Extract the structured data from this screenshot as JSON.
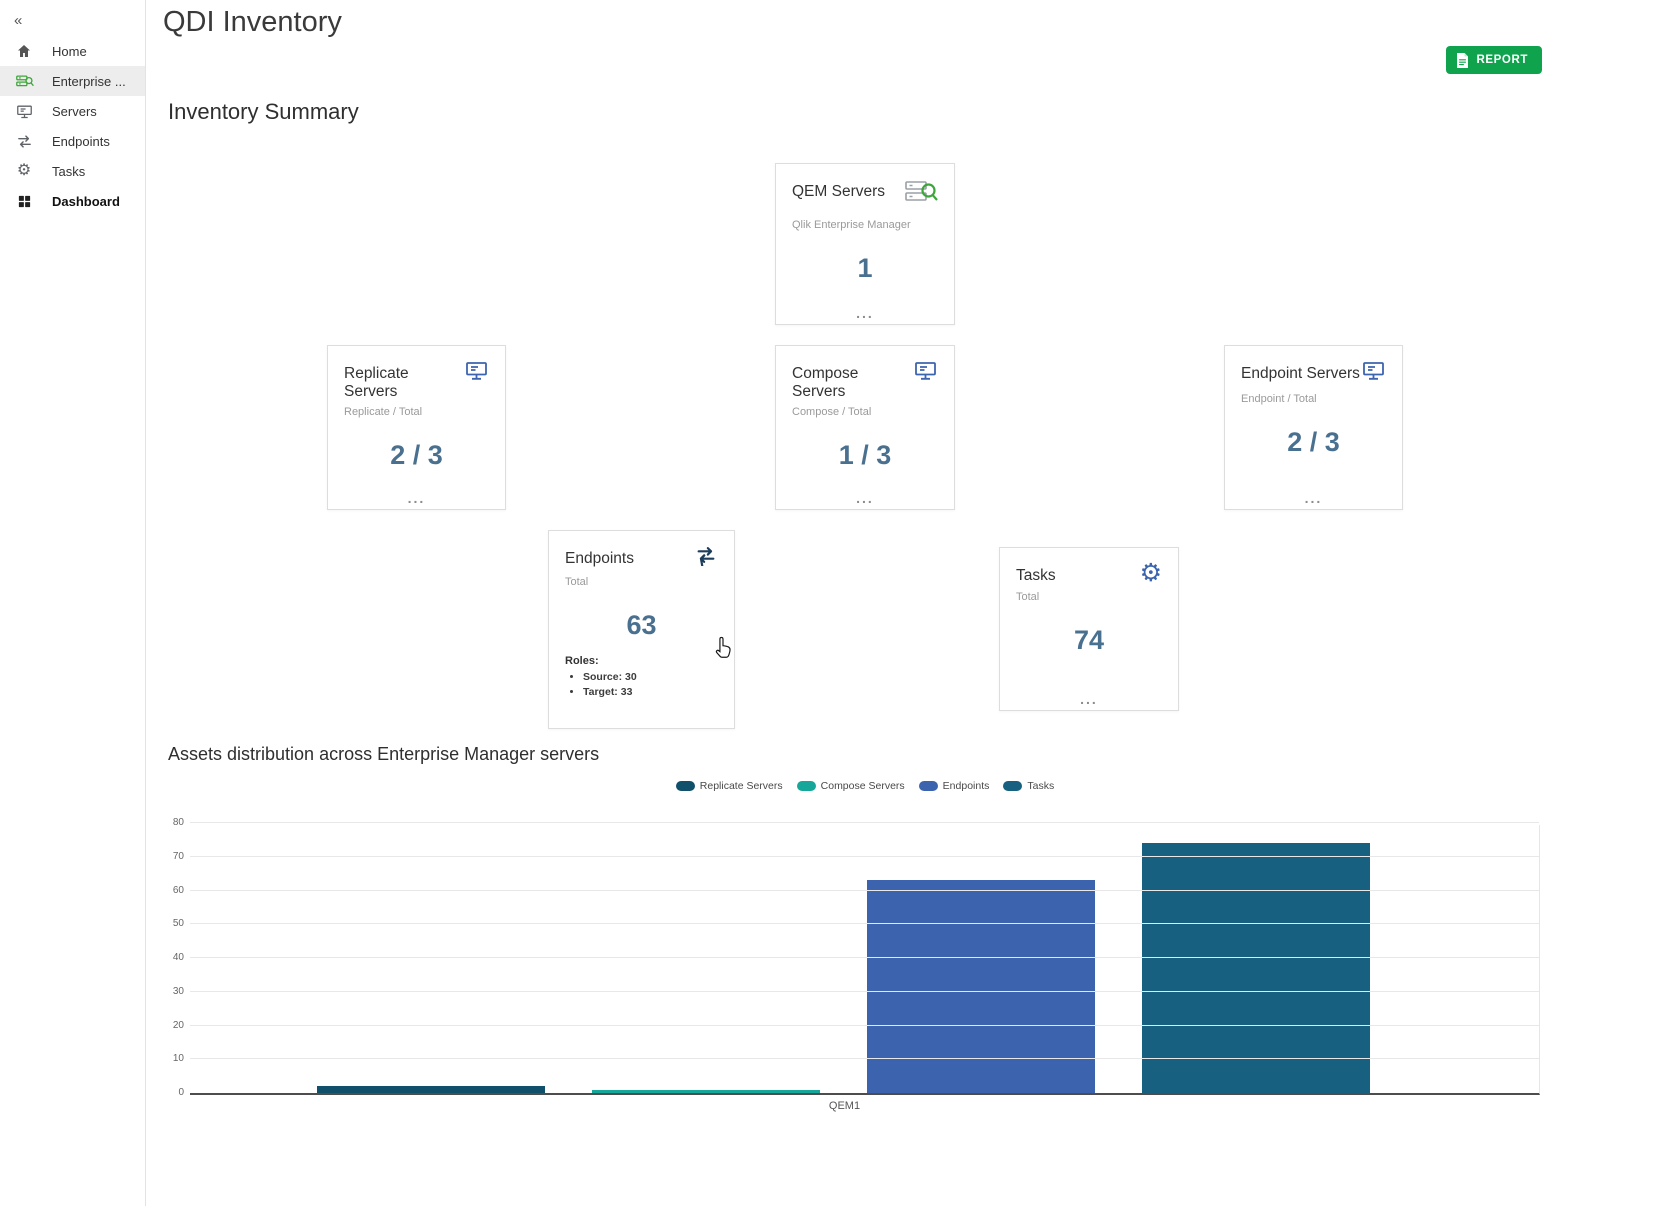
{
  "sidebar": {
    "collapse": "«",
    "items": [
      {
        "label": "Home",
        "icon": "home-icon"
      },
      {
        "label": "Enterprise ...",
        "icon": "enterprise-manager-icon"
      },
      {
        "label": "Servers",
        "icon": "servers-icon"
      },
      {
        "label": "Endpoints",
        "icon": "endpoints-icon"
      },
      {
        "label": "Tasks",
        "icon": "tasks-gear-icon"
      },
      {
        "label": "Dashboard",
        "icon": "dashboard-grid-icon"
      }
    ]
  },
  "header": {
    "title": "QDI Inventory",
    "report_button": "REPORT",
    "report_color": "#0fa34e"
  },
  "summary": {
    "heading": "Inventory Summary",
    "value_color": "#4a7090",
    "cards": {
      "qem": {
        "title": "QEM Servers",
        "subtitle": "Qlik Enterprise Manager",
        "value": "1",
        "more": "...",
        "icon": "qem-server-search-icon"
      },
      "replicate": {
        "title": "Replicate Servers",
        "subtitle": "Replicate / Total",
        "value": "2 / 3",
        "more": "...",
        "icon": "monitor-icon"
      },
      "compose": {
        "title": "Compose Servers",
        "subtitle": "Compose / Total",
        "value": "1 / 3",
        "more": "...",
        "icon": "monitor-icon"
      },
      "endpoint_servers": {
        "title": "Endpoint Servers",
        "subtitle": "Endpoint / Total",
        "value": "2 / 3",
        "more": "...",
        "icon": "monitor-icon"
      },
      "endpoints": {
        "title": "Endpoints",
        "subtitle": "Total",
        "value": "63",
        "roles_label": "Roles:",
        "roles": [
          "Source: 30",
          "Target: 33"
        ],
        "icon": "swap-arrows-icon"
      },
      "tasks": {
        "title": "Tasks",
        "subtitle": "Total",
        "value": "74",
        "more": "...",
        "icon": "gear-icon"
      }
    }
  },
  "chart_data": {
    "type": "bar",
    "title": "Assets distribution across Enterprise Manager servers",
    "categories": [
      "QEM1"
    ],
    "series": [
      {
        "name": "Replicate Servers",
        "values": [
          2
        ],
        "color": "#11506b"
      },
      {
        "name": "Compose Servers",
        "values": [
          1
        ],
        "color": "#17a79a"
      },
      {
        "name": "Endpoints",
        "values": [
          63
        ],
        "color": "#3c64ae"
      },
      {
        "name": "Tasks",
        "values": [
          74
        ],
        "color": "#176080"
      }
    ],
    "xlabel": "QEM1",
    "ylabel": "",
    "ylim": [
      0,
      80
    ],
    "yticks": [
      0,
      10,
      20,
      30,
      40,
      50,
      60,
      70,
      80
    ],
    "grid": true,
    "legend_position": "top-center"
  }
}
